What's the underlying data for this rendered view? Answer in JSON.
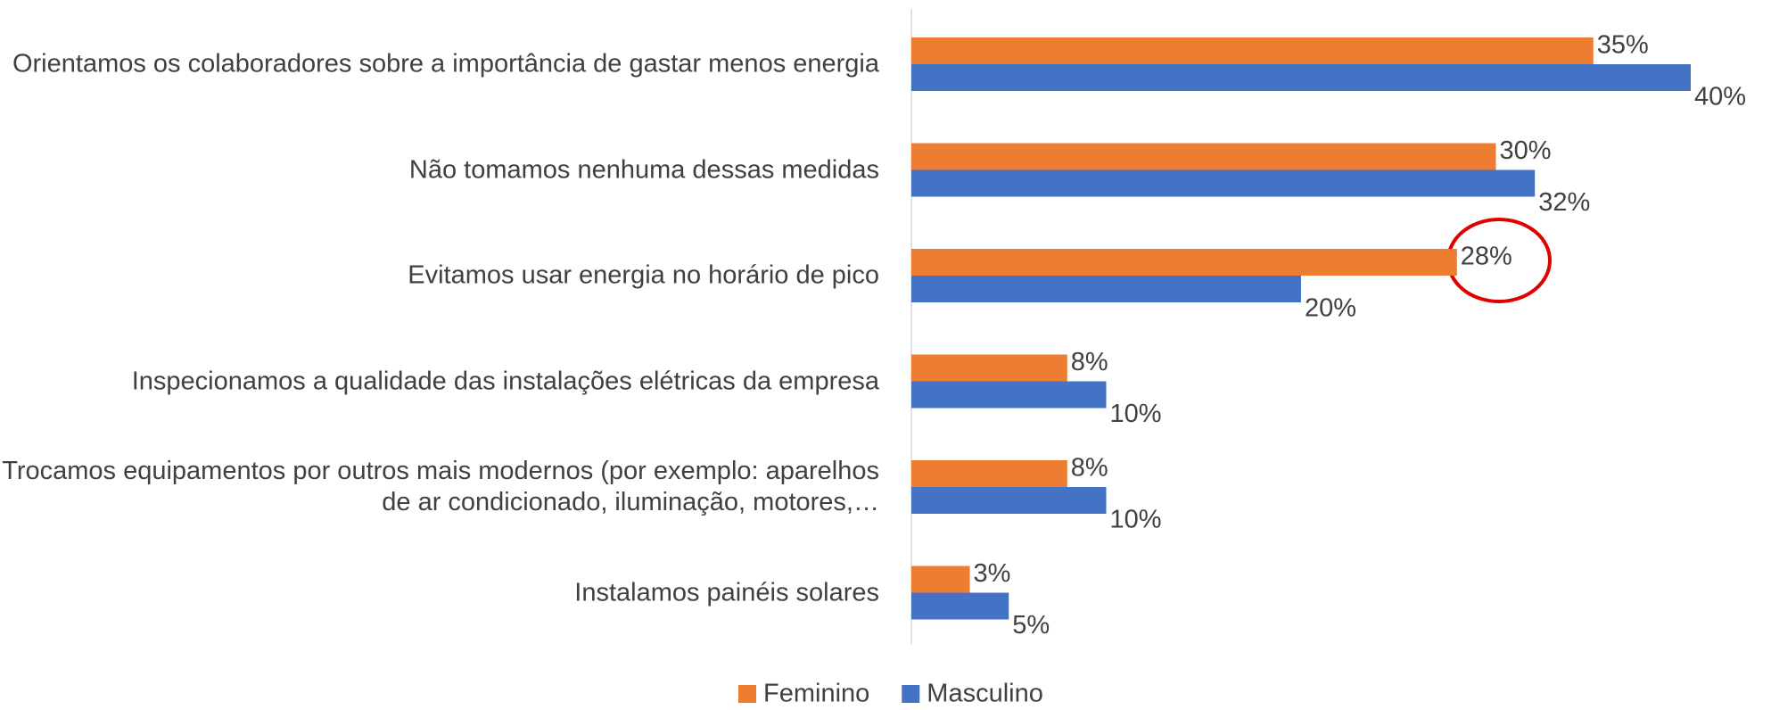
{
  "chart_data": {
    "type": "hbar",
    "categories": [
      "Orientamos os colaboradores sobre a importância de gastar menos energia",
      "Não tomamos nenhuma dessas medidas",
      "Evitamos usar energia no horário de pico",
      "Inspecionamos a qualidade das instalações elétricas da empresa",
      "Trocamos equipamentos por outros mais modernos (por exemplo: aparelhos de ar condicionado, iluminação, motores,…",
      "Instalamos painéis solares"
    ],
    "series": [
      {
        "name": "Feminino",
        "color": "#ED7D31",
        "values": [
          35,
          30,
          28,
          8,
          8,
          3
        ],
        "value_labels": [
          "35%",
          "30%",
          "28%",
          "8%",
          "8%",
          "3%"
        ]
      },
      {
        "name": "Masculino",
        "color": "#4472C4",
        "values": [
          40,
          32,
          20,
          10,
          10,
          5
        ],
        "value_labels": [
          "40%",
          "32%",
          "20%",
          "10%",
          "10%",
          "5%"
        ]
      }
    ],
    "legend": "bottom"
  }
}
